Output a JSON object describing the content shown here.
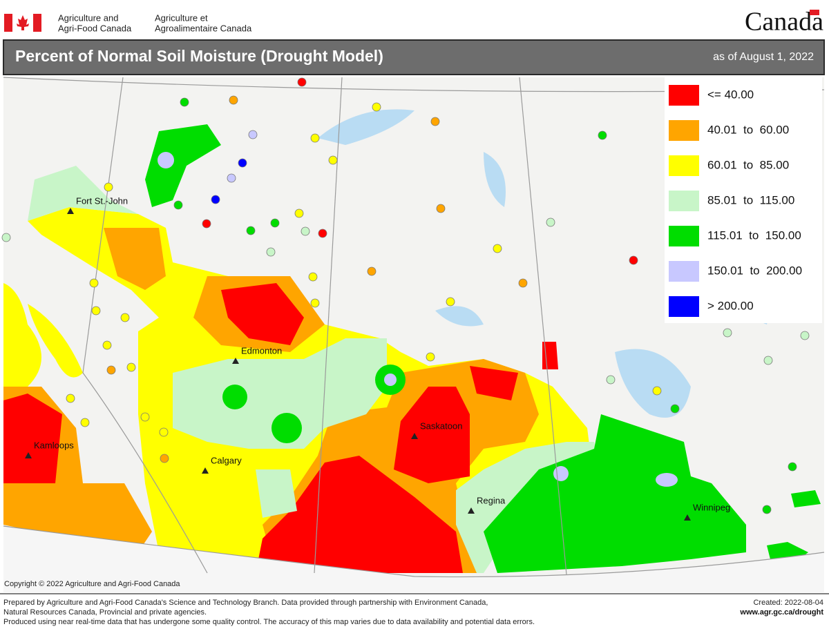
{
  "header": {
    "department_en": [
      "Agriculture and",
      "Agri-Food Canada"
    ],
    "department_fr": [
      "Agriculture et",
      "Agroalimentaire Canada"
    ],
    "wordmark": "Canada"
  },
  "title": "Percent of Normal Soil Moisture (Drought Model)",
  "date": "as of August 1, 2022",
  "legend": [
    {
      "label": "<= 40.00",
      "color": "#ff0000"
    },
    {
      "label": "40.01  to  60.00",
      "color": "#ffa500"
    },
    {
      "label": "60.01  to  85.00",
      "color": "#ffff00"
    },
    {
      "label": "85.01  to  115.00",
      "color": "#c8f5c8"
    },
    {
      "label": "115.01  to  150.00",
      "color": "#00dd00"
    },
    {
      "label": "150.01  to  200.00",
      "color": "#c8c8ff"
    },
    {
      "label": "> 200.00",
      "color": "#0000ff"
    }
  ],
  "cities": [
    "Fort St.-John",
    "Edmonton",
    "Kamloops",
    "Calgary",
    "Saskatoon",
    "Regina",
    "Winnipeg"
  ],
  "copyright": "Copyright © 2022 Agriculture and Agri-Food Canada",
  "footer": {
    "notes": [
      "Prepared by Agriculture and Agri-Food Canada's Science and Technology Branch. Data provided through partnership with Environment Canada,",
      "Natural Resources Canada, Provincial and private agencies.",
      "Produced using near real-time data that has undergone some quality control. The accuracy of this map varies due to data availability and potential data errors."
    ],
    "created": "Created: 2022-08-04",
    "url": "www.agr.gc.ca/drought"
  }
}
